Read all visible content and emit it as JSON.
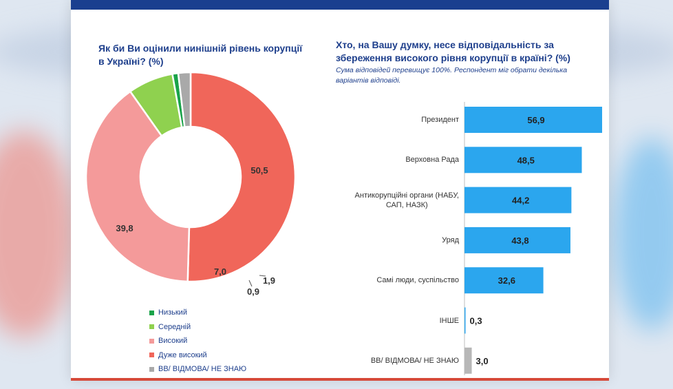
{
  "colors": {
    "blue": "#2ba6ee",
    "gray": "#b7b7b7",
    "dark_blue": "#1e3f8c",
    "low": "#1aa34a",
    "medium": "#8fd14f",
    "high": "#f49a9a",
    "very_high": "#f0665a",
    "no_answer": "#a9a9a9"
  },
  "chart_data": [
    {
      "type": "pie",
      "title": "Як би Ви оцінили нинішній рівень корупції в Україні? (%)",
      "donut": true,
      "slices": [
        {
          "name": "Дуже високий",
          "value": 50.5,
          "label": "50,5",
          "color": "#f0665a"
        },
        {
          "name": "Високий",
          "value": 39.8,
          "label": "39,8",
          "color": "#f49a9a"
        },
        {
          "name": "Середній",
          "value": 7.0,
          "label": "7,0",
          "color": "#8fd14f"
        },
        {
          "name": "Низький",
          "value": 0.9,
          "label": "0,9",
          "color": "#1aa34a"
        },
        {
          "name": "ВВ/ ВІДМОВА/ НЕ ЗНАЮ",
          "value": 1.9,
          "label": "1,9",
          "color": "#a9a9a9"
        }
      ],
      "legend": [
        "Низький",
        "Середній",
        "Високий",
        "Дуже високий",
        "ВВ/ ВІДМОВА/ НЕ ЗНАЮ"
      ],
      "legend_colors": [
        "#1aa34a",
        "#8fd14f",
        "#f49a9a",
        "#f0665a",
        "#a9a9a9"
      ],
      "legend_position": "bottom"
    },
    {
      "type": "bar",
      "orientation": "horizontal",
      "title": "Хто, на Вашу думку, несе відповідальність за збереження високого рівня корупції в країні? (%)",
      "subtitle": "Сума відповідей перевищує 100%. Респондент міг обрати декілька варіантів відповіді.",
      "categories": [
        [
          "Президент"
        ],
        [
          "Верховна Рада"
        ],
        [
          "Антикорупційні органи (НАБУ,",
          "САП, НАЗК)"
        ],
        [
          "Уряд"
        ],
        [
          "Самі люди, суспільство"
        ],
        [
          "ІНШЕ"
        ],
        [
          "ВВ/ ВІДМОВА/ НЕ ЗНАЮ"
        ]
      ],
      "values": [
        56.9,
        48.5,
        44.2,
        43.8,
        32.6,
        0.3,
        3.0
      ],
      "value_labels": [
        "56,9",
        "48,5",
        "44,2",
        "43,8",
        "32,6",
        "0,3",
        "3,0"
      ],
      "bar_colors": [
        "#2ba6ee",
        "#2ba6ee",
        "#2ba6ee",
        "#2ba6ee",
        "#2ba6ee",
        "#2ba6ee",
        "#b7b7b7"
      ],
      "xlim": [
        0,
        56.9
      ]
    }
  ]
}
